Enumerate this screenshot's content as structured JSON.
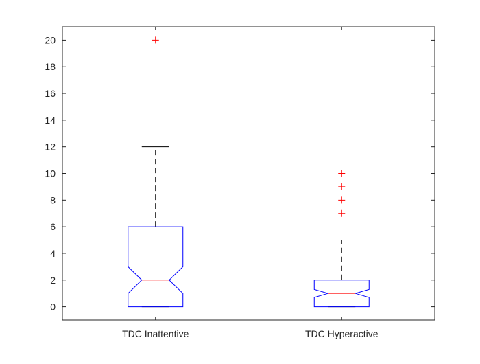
{
  "chart_data": {
    "type": "boxplot",
    "title": "",
    "xlabel": "",
    "ylabel": "",
    "notched": true,
    "ylim": [
      -1,
      21
    ],
    "yticks": [
      0,
      2,
      4,
      6,
      8,
      10,
      12,
      14,
      16,
      18,
      20
    ],
    "categories": [
      "TDC Inattentive",
      "TDC Hyperactive"
    ],
    "boxes": [
      {
        "label": "TDC Inattentive",
        "whisker_low": 0,
        "q1": 0,
        "median": 2,
        "q3": 6,
        "whisker_high": 12,
        "notch_low": 1,
        "notch_high": 3,
        "outliers": [
          20
        ]
      },
      {
        "label": "TDC Hyperactive",
        "whisker_low": 0,
        "q1": 0,
        "median": 1,
        "q3": 2,
        "whisker_high": 5,
        "notch_low": 0.7,
        "notch_high": 1.3,
        "outliers": [
          7,
          8,
          9,
          10
        ]
      }
    ],
    "colors": {
      "box": "#0000ff",
      "median": "#ff0000",
      "whisker": "#000000",
      "outlier": "#ff0000",
      "axis": "#262626"
    },
    "grid": false,
    "legend": "none"
  }
}
